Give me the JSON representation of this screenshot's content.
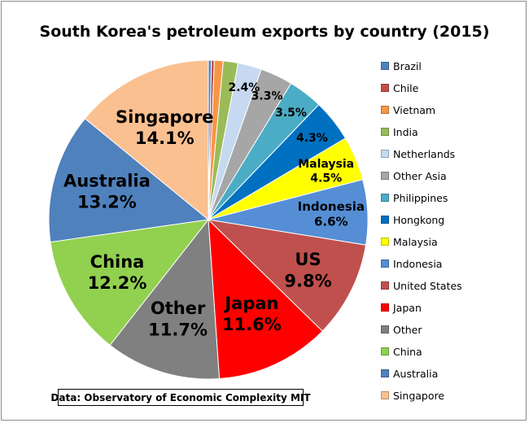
{
  "chart_data": {
    "type": "pie",
    "title": "South Korea's petroleum exports by country (2015)",
    "source_note": "Data: Observatory of Economic Complexity MIT",
    "legend_position": "right",
    "slices": [
      {
        "name": "Brazil",
        "value": 0.3,
        "color": "#4f81bd",
        "label": ""
      },
      {
        "name": "Chile",
        "value": 0.3,
        "color": "#c0504d",
        "label": ""
      },
      {
        "name": "Vietnam",
        "value": 0.9,
        "color": "#f79646",
        "label": ""
      },
      {
        "name": "India",
        "value": 1.5,
        "color": "#9bbb59",
        "label": ""
      },
      {
        "name": "Netherlands",
        "value": 2.4,
        "color": "#c6d9f1",
        "label": "2.4%"
      },
      {
        "name": "Other Asia",
        "value": 3.3,
        "color": "#a6a6a6",
        "label": "3.3%"
      },
      {
        "name": "Philippines",
        "value": 3.5,
        "color": "#4bacc6",
        "label": "3.5%"
      },
      {
        "name": "Hongkong",
        "value": 4.3,
        "color": "#0070c0",
        "label": "4.3%"
      },
      {
        "name": "Malaysia",
        "value": 4.5,
        "color": "#ffff00",
        "label": "Malaysia\n4.5%"
      },
      {
        "name": "Indonesia",
        "value": 6.6,
        "color": "#558ed5",
        "label": "Indonesia\n6.6%"
      },
      {
        "name": "United States",
        "value": 9.8,
        "color": "#c0504d",
        "label": "US\n9.8%"
      },
      {
        "name": "Japan",
        "value": 11.6,
        "color": "#ff0000",
        "label": "Japan\n11.6%"
      },
      {
        "name": "Other",
        "value": 11.7,
        "color": "#808080",
        "label": "Other\n11.7%"
      },
      {
        "name": "China",
        "value": 12.2,
        "color": "#92d050",
        "label": "China\n12.2%"
      },
      {
        "name": "Australia",
        "value": 13.2,
        "color": "#4f81bd",
        "label": "Australia\n13.2%"
      },
      {
        "name": "Singapore",
        "value": 14.1,
        "color": "#fac090",
        "label": "Singapore\n14.1%"
      }
    ]
  }
}
